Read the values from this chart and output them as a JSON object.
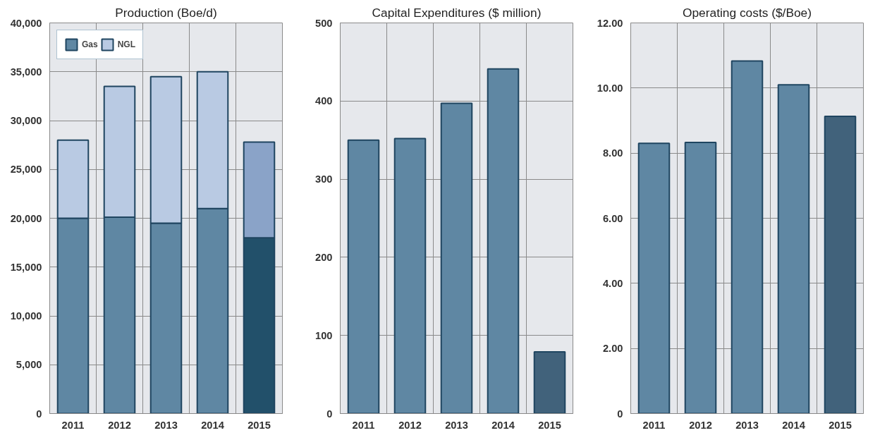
{
  "chart_data": [
    {
      "type": "bar",
      "title": "Production (Boe/d)",
      "categories": [
        "2011",
        "2012",
        "2013",
        "2014",
        "2015"
      ],
      "stacked": true,
      "series": [
        {
          "name": "Gas",
          "colors": [
            "#5f87a3",
            "#5f87a3",
            "#5f87a3",
            "#5f87a3",
            "#22506a"
          ],
          "values": [
            20000,
            20100,
            19500,
            21000,
            18000
          ]
        },
        {
          "name": "NGL",
          "colors": [
            "#b9cae3",
            "#b9cae3",
            "#b9cae3",
            "#b9cae3",
            "#8aa3c8"
          ],
          "values": [
            8000,
            13400,
            15000,
            14000,
            9800
          ]
        }
      ],
      "ylim": [
        0,
        40000
      ],
      "yticks": [
        0,
        {
          "value": 5000,
          "label": "5,000"
        },
        {
          "value": 10000,
          "label": "10,000"
        },
        {
          "value": 15000,
          "label": "15,000"
        },
        {
          "value": 20000,
          "label": "20,000"
        },
        {
          "value": 25000,
          "label": "25,000"
        },
        {
          "value": 30000,
          "label": "30,000"
        },
        {
          "value": 35000,
          "label": "35,000"
        },
        {
          "value": 40000,
          "label": "40,000"
        }
      ],
      "grid": true,
      "legend": "top left"
    },
    {
      "type": "bar",
      "title": "Capital Expenditures ($ million)",
      "categories": [
        "2011",
        "2012",
        "2013",
        "2014",
        "2015"
      ],
      "values": [
        350,
        352,
        397,
        441,
        79
      ],
      "colors": [
        "#5f87a3",
        "#5f87a3",
        "#5f87a3",
        "#5f87a3",
        "#41627b"
      ],
      "ylim": [
        0,
        500
      ],
      "yticks": [
        0,
        100,
        200,
        300,
        400,
        500
      ],
      "grid": true
    },
    {
      "type": "bar",
      "title": "Operating costs ($/Boe)",
      "categories": [
        "2011",
        "2012",
        "2013",
        "2014",
        "2015"
      ],
      "values": [
        8.3,
        8.33,
        10.83,
        10.1,
        9.13
      ],
      "colors": [
        "#5f87a3",
        "#5f87a3",
        "#5f87a3",
        "#5f87a3",
        "#41627b"
      ],
      "ylim": [
        0,
        12
      ],
      "yticks": [
        0,
        {
          "value": 2,
          "label": "2.00"
        },
        {
          "value": 4,
          "label": "4.00"
        },
        {
          "value": 6,
          "label": "6.00"
        },
        {
          "value": 8,
          "label": "8.00"
        },
        {
          "value": 10,
          "label": "10.00"
        },
        {
          "value": 12,
          "label": "12.00"
        }
      ],
      "grid": true
    }
  ]
}
